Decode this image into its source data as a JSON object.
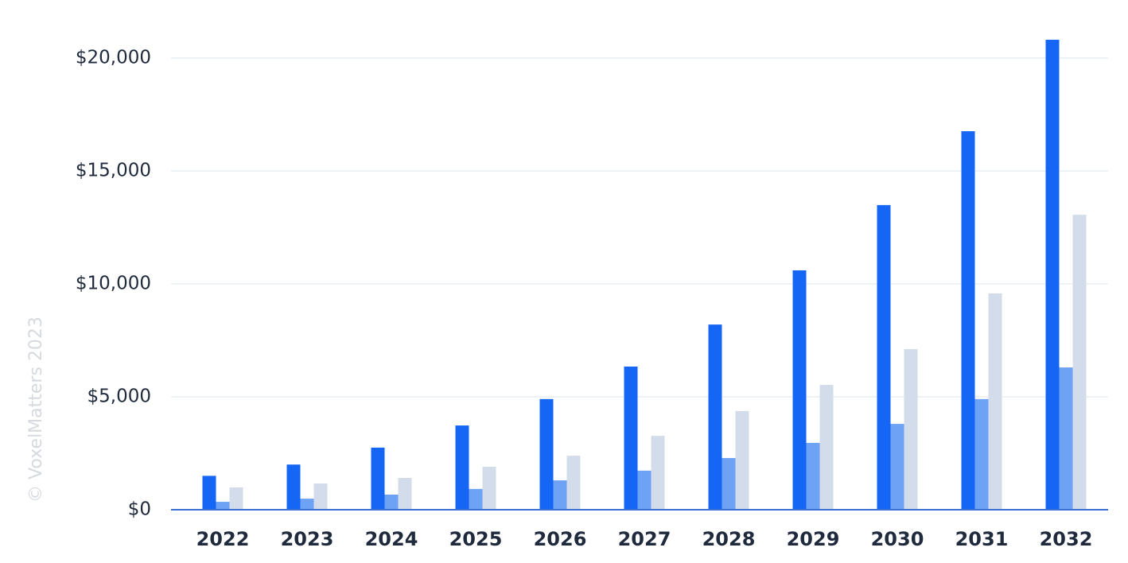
{
  "chart_data": {
    "type": "bar",
    "watermark": "© VoxelMatters 2023",
    "categories": [
      "2022",
      "2023",
      "2024",
      "2025",
      "2026",
      "2027",
      "2028",
      "2029",
      "2030",
      "2031",
      "2032"
    ],
    "series": [
      {
        "color": "#1566f5",
        "values": [
          1500,
          2000,
          2750,
          3730,
          4900,
          6340,
          8200,
          10600,
          13490,
          16760,
          20810
        ]
      },
      {
        "color": "#6ea2f5",
        "values": [
          350,
          490,
          670,
          920,
          1300,
          1730,
          2290,
          2960,
          3800,
          4900,
          6300
        ]
      },
      {
        "color": "#d3dcea",
        "values": [
          990,
          1160,
          1410,
          1900,
          2390,
          3270,
          4370,
          5530,
          7110,
          9580,
          13060
        ]
      }
    ],
    "ylim": [
      0,
      21000
    ],
    "yticks": [
      {
        "value": 0,
        "label": "$0"
      },
      {
        "value": 5000,
        "label": "$5,000"
      },
      {
        "value": 10000,
        "label": "$10,000"
      },
      {
        "value": 15000,
        "label": "$15,000"
      },
      {
        "value": 20000,
        "label": "$20,000"
      }
    ],
    "grid": true
  }
}
